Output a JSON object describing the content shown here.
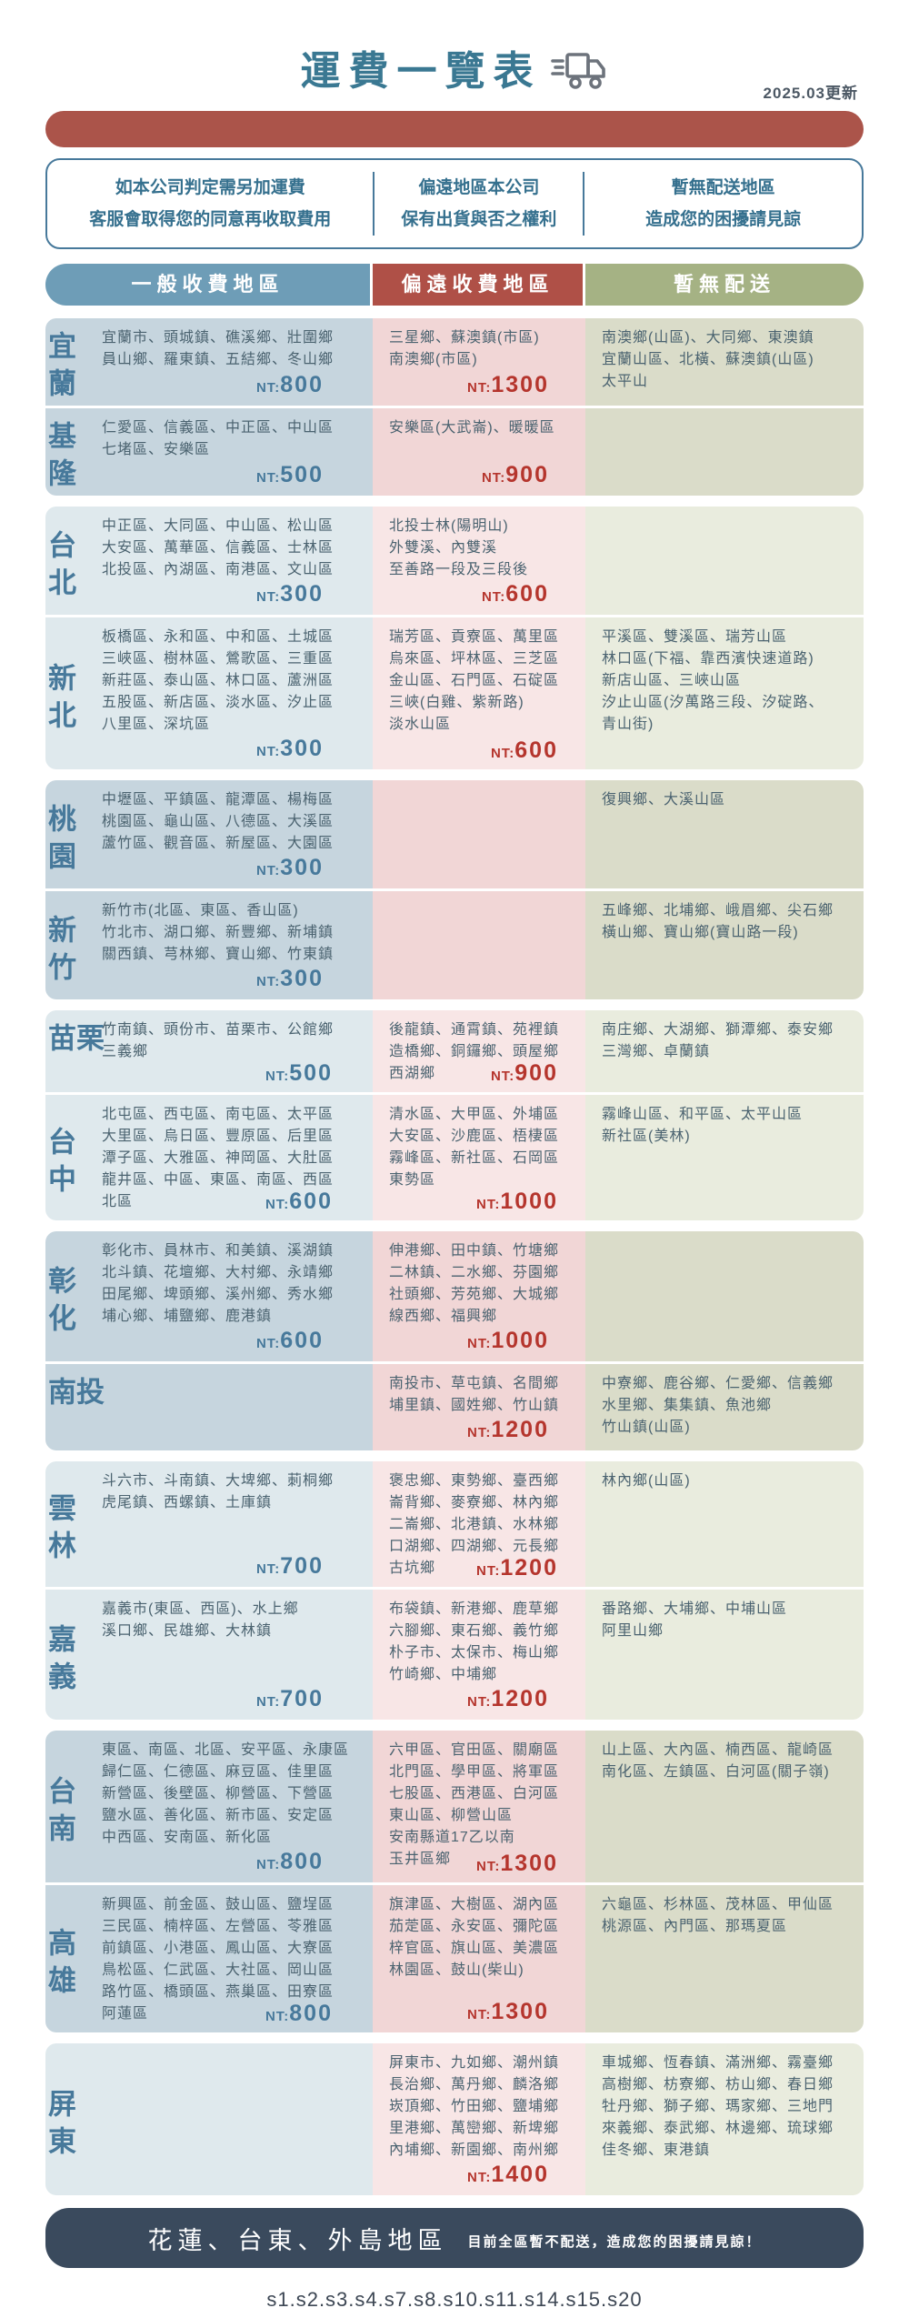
{
  "header": {
    "title": "運費一覽表",
    "updated": "2025.03更新"
  },
  "notices": [
    {
      "line1": "如本公司判定需另加運費",
      "line2": "客服會取得您的同意再收取費用"
    },
    {
      "line1": "偏遠地區本公司",
      "line2": "保有出貨與否之權利"
    },
    {
      "line1": "暫無配送地區",
      "line2": "造成您的困擾請見諒"
    }
  ],
  "columns": {
    "general": "一般收費地區",
    "remote": "偏遠收費地區",
    "none": "暫無配送"
  },
  "price_prefix": "NT:",
  "colors": {
    "title_blue": "#3a7892",
    "bar_red": "#ab544a",
    "header_general": "#6e9db7",
    "header_remote": "#af5047",
    "header_none": "#a5b284",
    "price_general": "#47799b",
    "price_remote": "#b5352d",
    "footer_bg": "#3a4a5d"
  },
  "regions": [
    {
      "name": "宜蘭",
      "general": {
        "lines": [
          "宜蘭市、頭城鎮、礁溪鄉、壯圍鄉",
          "員山鄉、羅東鎮、五結鄉、冬山鄉"
        ],
        "price": "800"
      },
      "remote": {
        "lines": [
          "三星鄉、蘇澳鎮(市區)",
          "南澳鄉(市區)"
        ],
        "price": "1300"
      },
      "none": {
        "lines": [
          "南澳鄉(山區)、大同鄉、東澳鎮",
          "宜蘭山區、北橫、蘇澳鎮(山區)",
          "太平山"
        ]
      }
    },
    {
      "name": "基隆",
      "general": {
        "lines": [
          "仁愛區、信義區、中正區、中山區",
          "七堵區、安樂區"
        ],
        "price": "500"
      },
      "remote": {
        "lines": [
          "安樂區(大武崙)、暖暖區"
        ],
        "price": "900"
      },
      "none": {
        "lines": []
      }
    },
    {
      "name": "台北",
      "general": {
        "lines": [
          "中正區、大同區、中山區、松山區",
          "大安區、萬華區、信義區、士林區",
          "北投區、內湖區、南港區、文山區"
        ],
        "price": "300"
      },
      "remote": {
        "lines": [
          "北投士林(陽明山)",
          "外雙溪、內雙溪",
          "至善路一段及三段後"
        ],
        "price": "600"
      },
      "none": {
        "lines": []
      }
    },
    {
      "name": "新北",
      "general": {
        "lines": [
          "板橋區、永和區、中和區、土城區",
          "三峽區、樹林區、鶯歌區、三重區",
          "新莊區、泰山區、林口區、蘆洲區",
          "五股區、新店區、淡水區、汐止區",
          "八里區、深坑區"
        ],
        "price": "300"
      },
      "remote": {
        "lines": [
          "瑞芳區、貢寮區、萬里區",
          "烏來區、坪林區、三芝區",
          "金山區、石門區、石碇區",
          "三峽(白雞、紫新路)",
          "淡水山區"
        ],
        "price": "600"
      },
      "none": {
        "lines": [
          "平溪區、雙溪區、瑞芳山區",
          "林口區(下福、靠西濱快速道路)",
          "新店山區、三峽山區",
          "汐止山區(汐萬路三段、汐碇路、",
          "青山街)"
        ]
      }
    },
    {
      "name": "桃園",
      "general": {
        "lines": [
          "中壢區、平鎮區、龍潭區、楊梅區",
          "桃園區、龜山區、八德區、大溪區",
          "蘆竹區、觀音區、新屋區、大園區"
        ],
        "price": "300"
      },
      "remote": {
        "lines": []
      },
      "none": {
        "lines": [
          "復興鄉、大溪山區"
        ]
      }
    },
    {
      "name": "新竹",
      "general": {
        "lines": [
          "新竹市(北區、東區、香山區)",
          "竹北市、湖口鄉、新豐鄉、新埔鎮",
          "關西鎮、芎林鄉、寶山鄉、竹東鎮"
        ],
        "price": "300"
      },
      "remote": {
        "lines": []
      },
      "none": {
        "lines": [
          "五峰鄉、北埔鄉、峨眉鄉、尖石鄉",
          "橫山鄉、寶山鄉(寶山路一段)"
        ]
      }
    },
    {
      "name": "苗栗",
      "general": {
        "lines": [
          "竹南鎮、頭份市、苗栗市、公館鄉",
          "三義鄉"
        ],
        "price": "500"
      },
      "remote": {
        "lines": [
          "後龍鎮、通霄鎮、苑裡鎮",
          "造橋鄉、銅鑼鄉、頭屋鄉",
          "西湖鄉"
        ],
        "price": "900"
      },
      "none": {
        "lines": [
          "南庄鄉、大湖鄉、獅潭鄉、泰安鄉",
          "三灣鄉、卓蘭鎮"
        ]
      }
    },
    {
      "name": "台中",
      "general": {
        "lines": [
          "北屯區、西屯區、南屯區、太平區",
          "大里區、烏日區、豐原區、后里區",
          "潭子區、大雅區、神岡區、大肚區",
          "龍井區、中區、東區、南區、西區",
          "北區"
        ],
        "price": "600"
      },
      "remote": {
        "lines": [
          "清水區、大甲區、外埔區",
          "大安區、沙鹿區、梧棲區",
          "霧峰區、新社區、石岡區",
          "東勢區"
        ],
        "price": "1000"
      },
      "none": {
        "lines": [
          "霧峰山區、和平區、太平山區",
          "新社區(美林)"
        ]
      }
    },
    {
      "name": "彰化",
      "general": {
        "lines": [
          "彰化市、員林市、和美鎮、溪湖鎮",
          "北斗鎮、花壇鄉、大村鄉、永靖鄉",
          "田尾鄉、埤頭鄉、溪州鄉、秀水鄉",
          "埔心鄉、埔鹽鄉、鹿港鎮"
        ],
        "price": "600"
      },
      "remote": {
        "lines": [
          "伸港鄉、田中鎮、竹塘鄉",
          "二林鎮、二水鄉、芬園鄉",
          "社頭鄉、芳苑鄉、大城鄉",
          "線西鄉、福興鄉"
        ],
        "price": "1000"
      },
      "none": {
        "lines": []
      }
    },
    {
      "name": "南投",
      "general": {
        "lines": []
      },
      "remote": {
        "lines": [
          "南投市、草屯鎮、名間鄉",
          "埔里鎮、國姓鄉、竹山鎮"
        ],
        "price": "1200"
      },
      "none": {
        "lines": [
          "中寮鄉、鹿谷鄉、仁愛鄉、信義鄉",
          "水里鄉、集集鎮、魚池鄉",
          "竹山鎮(山區)"
        ]
      }
    },
    {
      "name": "雲林",
      "general": {
        "lines": [
          "斗六市、斗南鎮、大埤鄉、莿桐鄉",
          "虎尾鎮、西螺鎮、土庫鎮"
        ],
        "price": "700"
      },
      "remote": {
        "lines": [
          "褒忠鄉、東勢鄉、臺西鄉",
          "崙背鄉、麥寮鄉、林內鄉",
          "二崙鄉、北港鎮、水林鄉",
          "口湖鄉、四湖鄉、元長鄉",
          "古坑鄉"
        ],
        "price": "1200"
      },
      "none": {
        "lines": [
          "林內鄉(山區)"
        ]
      }
    },
    {
      "name": "嘉義",
      "general": {
        "lines": [
          "嘉義市(東區、西區)、水上鄉",
          "溪口鄉、民雄鄉、大林鎮"
        ],
        "price": "700"
      },
      "remote": {
        "lines": [
          "布袋鎮、新港鄉、鹿草鄉",
          "六腳鄉、東石鄉、義竹鄉",
          "朴子市、太保市、梅山鄉",
          "竹崎鄉、中埔鄉"
        ],
        "price": "1200"
      },
      "none": {
        "lines": [
          "番路鄉、大埔鄉、中埔山區",
          "阿里山鄉"
        ]
      }
    },
    {
      "name": "台南",
      "general": {
        "lines": [
          "東區、南區、北區、安平區、永康區",
          "歸仁區、仁德區、麻豆區、佳里區",
          "新營區、後壁區、柳營區、下營區",
          "鹽水區、善化區、新市區、安定區",
          "中西區、安南區、新化區"
        ],
        "price": "800"
      },
      "remote": {
        "lines": [
          "六甲區、官田區、關廟區",
          "北門區、學甲區、將軍區",
          "七股區、西港區、白河區",
          "東山區、柳營山區",
          "安南縣道17乙以南",
          "玉井區鄉"
        ],
        "price": "1300"
      },
      "none": {
        "lines": [
          "山上區、大內區、楠西區、龍崎區",
          "南化區、左鎮區、白河區(關子嶺)"
        ]
      }
    },
    {
      "name": "高雄",
      "general": {
        "lines": [
          "新興區、前金區、鼓山區、鹽埕區",
          "三民區、楠梓區、左營區、苓雅區",
          "前鎮區、小港區、鳳山區、大寮區",
          "鳥松區、仁武區、大社區、岡山區",
          "路竹區、橋頭區、燕巢區、田寮區",
          "阿蓮區"
        ],
        "price": "800"
      },
      "remote": {
        "lines": [
          "旗津區、大樹區、湖內區",
          "茄萣區、永安區、彌陀區",
          "梓官區、旗山區、美濃區",
          "林園區、鼓山(柴山)"
        ],
        "price": "1300"
      },
      "none": {
        "lines": [
          "六龜區、杉林區、茂林區、甲仙區",
          "桃源區、內門區、那瑪夏區"
        ]
      }
    },
    {
      "name": "屏東",
      "general": {
        "lines": []
      },
      "remote": {
        "lines": [
          "屏東市、九如鄉、潮州鎮",
          "長治鄉、萬丹鄉、麟洛鄉",
          "崁頂鄉、竹田鄉、鹽埔鄉",
          "里港鄉、萬巒鄉、新埤鄉",
          "內埔鄉、新園鄉、南州鄉"
        ],
        "price": "1400"
      },
      "none": {
        "lines": [
          "車城鄉、恆春鎮、滿洲鄉、霧臺鄉",
          "高樹鄉、枋寮鄉、枋山鄉、春日鄉",
          "牡丹鄉、獅子鄉、瑪家鄉、三地門",
          "來義鄉、泰武鄉、林邊鄉、琉球鄉",
          "佳冬鄉、東港鎮"
        ]
      }
    }
  ],
  "footer": {
    "title": "花蓮、台東、外島地區",
    "note": "目前全區暫不配送，造成您的困擾請見諒！",
    "code": "s1.s2.s3.s4.s7.s8.s10.s11.s14.s15.s20"
  }
}
